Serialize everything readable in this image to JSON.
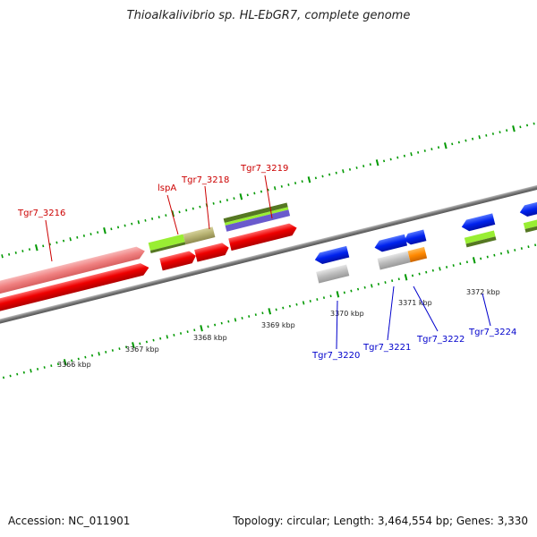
{
  "title": "Thioalkalivibrio sp. HL-EbGR7, complete genome",
  "footer": {
    "accession": "Accession: NC_011901",
    "topology": "Topology: circular; Length: 3,464,554 bp; Genes: 3,330"
  },
  "colors": {
    "forward_label": "#cc0000",
    "reverse_label": "#0000cc",
    "cds": "#ee0000",
    "cds_pale": "#f08080",
    "rrna_green": "#99ee33",
    "olive": "#b5b070",
    "dark_olive": "#557722",
    "purple": "#6a5acd",
    "blue_gene": "#0022ee",
    "grey_gene": "#bbbbbb",
    "orange_gene": "#ff8800",
    "tick_green": "#009900"
  },
  "scale_labels": [
    "3366 kbp",
    "3367 kbp",
    "3368 kbp",
    "3369 kbp",
    "3370 kbp",
    "3371 kbp",
    "3372 kbp"
  ],
  "forward_genes": [
    {
      "name": "Tgr7_3216"
    },
    {
      "name": "lspA"
    },
    {
      "name": "Tgr7_3218"
    },
    {
      "name": "Tgr7_3219"
    }
  ],
  "reverse_genes": [
    {
      "name": "Tgr7_3220"
    },
    {
      "name": "Tgr7_3221"
    },
    {
      "name": "Tgr7_3222"
    },
    {
      "name": "Tgr7_3224"
    }
  ]
}
